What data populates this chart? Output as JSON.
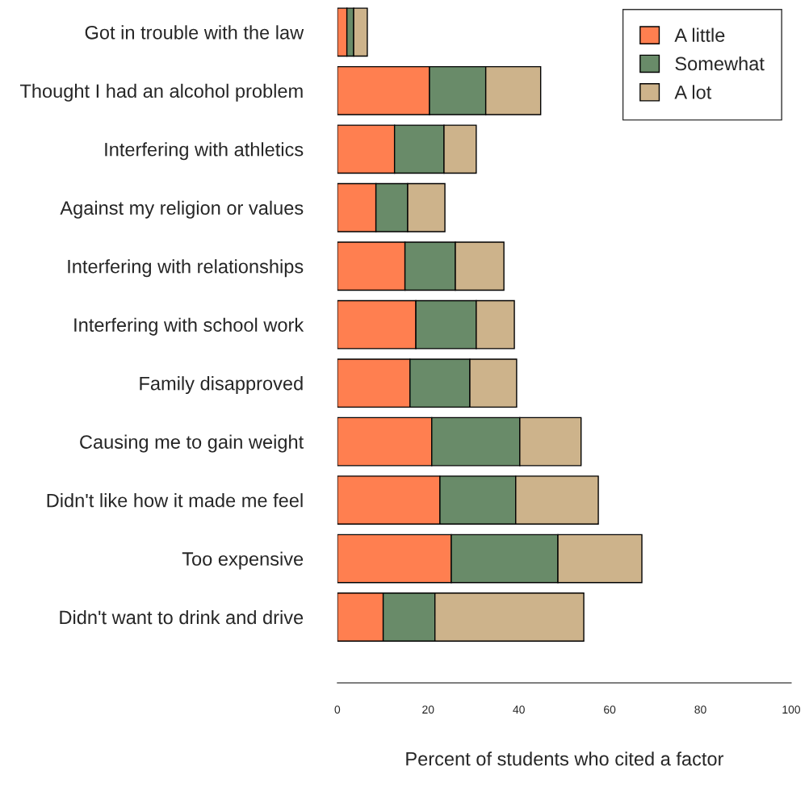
{
  "chart_data": {
    "type": "bar",
    "orientation": "horizontal",
    "stacked": true,
    "categories": [
      "Got in trouble with the law",
      "Thought I had an alcohol problem",
      "Interfering with athletics",
      "Against my religion or values",
      "Interfering with relationships",
      "Interfering with school work",
      "Family disapproved",
      "Causing me to gain weight",
      "Didn't like how it made me feel",
      "Too expensive",
      "Didn't want to drink and drive"
    ],
    "series": [
      {
        "name": "A little",
        "color": "#ff7f50",
        "values": [
          2.1,
          20.3,
          12.6,
          8.5,
          14.9,
          17.3,
          16.0,
          20.8,
          22.6,
          25.1,
          10.1
        ]
      },
      {
        "name": "Somewhat",
        "color": "#698b69",
        "values": [
          1.5,
          12.4,
          10.9,
          7.0,
          11.1,
          13.3,
          13.2,
          19.4,
          16.7,
          23.5,
          11.4
        ]
      },
      {
        "name": "A lot",
        "color": "#cdb38b",
        "values": [
          3.0,
          12.1,
          7.1,
          8.2,
          10.7,
          8.4,
          10.3,
          13.5,
          18.2,
          18.5,
          32.8
        ]
      }
    ],
    "xlabel": "Percent of students who cited a factor",
    "xlim": [
      0,
      100
    ],
    "xticks": [
      0,
      20,
      40,
      60,
      80,
      100
    ],
    "legend": "top right",
    "grid": false
  }
}
